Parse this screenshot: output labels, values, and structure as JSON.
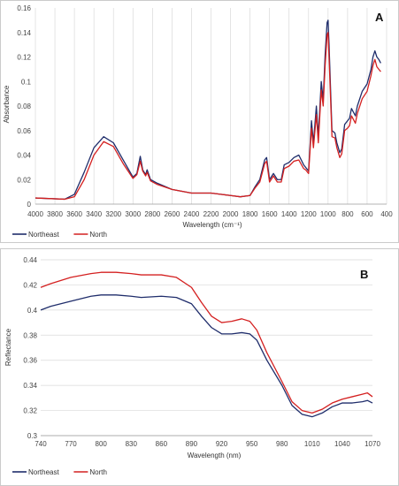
{
  "chart_data": [
    {
      "type": "line",
      "panel_label": "A",
      "title": "",
      "xlabel": "Wavelength (cm⁻¹)",
      "ylabel": "Absorbance",
      "x_reversed": true,
      "xlim": [
        4000,
        400
      ],
      "ylim": [
        0,
        0.16
      ],
      "xticks": [
        4000,
        3800,
        3600,
        3400,
        3200,
        3000,
        2800,
        2600,
        2400,
        2200,
        2000,
        1800,
        1600,
        1400,
        1200,
        1000,
        800,
        600,
        400
      ],
      "yticks": [
        0,
        0.02,
        0.04,
        0.06,
        0.08,
        0.1,
        0.12,
        0.14,
        0.16
      ],
      "grid": "vertical",
      "legend_position": "bottom-left",
      "series": [
        {
          "name": "Northeast",
          "color": "#1f2d6b",
          "points": [
            [
              4000,
              0.005
            ],
            [
              3700,
              0.004
            ],
            [
              3600,
              0.008
            ],
            [
              3500,
              0.026
            ],
            [
              3400,
              0.046
            ],
            [
              3300,
              0.055
            ],
            [
              3200,
              0.05
            ],
            [
              3100,
              0.036
            ],
            [
              3000,
              0.022
            ],
            [
              2960,
              0.025
            ],
            [
              2925,
              0.039
            ],
            [
              2900,
              0.028
            ],
            [
              2870,
              0.024
            ],
            [
              2855,
              0.028
            ],
            [
              2820,
              0.02
            ],
            [
              2750,
              0.017
            ],
            [
              2600,
              0.012
            ],
            [
              2400,
              0.009
            ],
            [
              2200,
              0.009
            ],
            [
              2100,
              0.008
            ],
            [
              2000,
              0.007
            ],
            [
              1900,
              0.006
            ],
            [
              1800,
              0.007
            ],
            [
              1750,
              0.014
            ],
            [
              1700,
              0.02
            ],
            [
              1650,
              0.036
            ],
            [
              1630,
              0.038
            ],
            [
              1600,
              0.02
            ],
            [
              1560,
              0.025
            ],
            [
              1520,
              0.02
            ],
            [
              1480,
              0.02
            ],
            [
              1450,
              0.032
            ],
            [
              1400,
              0.034
            ],
            [
              1350,
              0.038
            ],
            [
              1300,
              0.04
            ],
            [
              1250,
              0.032
            ],
            [
              1230,
              0.03
            ],
            [
              1200,
              0.027
            ],
            [
              1170,
              0.068
            ],
            [
              1150,
              0.05
            ],
            [
              1120,
              0.08
            ],
            [
              1100,
              0.055
            ],
            [
              1070,
              0.1
            ],
            [
              1050,
              0.085
            ],
            [
              1030,
              0.122
            ],
            [
              1010,
              0.148
            ],
            [
              1000,
              0.15
            ],
            [
              990,
              0.13
            ],
            [
              960,
              0.06
            ],
            [
              930,
              0.058
            ],
            [
              910,
              0.05
            ],
            [
              880,
              0.042
            ],
            [
              860,
              0.045
            ],
            [
              830,
              0.065
            ],
            [
              800,
              0.068
            ],
            [
              780,
              0.07
            ],
            [
              760,
              0.078
            ],
            [
              720,
              0.072
            ],
            [
              700,
              0.08
            ],
            [
              650,
              0.092
            ],
            [
              600,
              0.098
            ],
            [
              560,
              0.11
            ],
            [
              540,
              0.12
            ],
            [
              520,
              0.125
            ],
            [
              500,
              0.12
            ],
            [
              480,
              0.118
            ],
            [
              460,
              0.115
            ]
          ]
        },
        {
          "name": "North",
          "color": "#d42020",
          "points": [
            [
              4000,
              0.005
            ],
            [
              3700,
              0.004
            ],
            [
              3600,
              0.006
            ],
            [
              3500,
              0.02
            ],
            [
              3400,
              0.04
            ],
            [
              3300,
              0.051
            ],
            [
              3200,
              0.047
            ],
            [
              3100,
              0.033
            ],
            [
              3000,
              0.021
            ],
            [
              2960,
              0.024
            ],
            [
              2925,
              0.035
            ],
            [
              2900,
              0.027
            ],
            [
              2870,
              0.023
            ],
            [
              2855,
              0.026
            ],
            [
              2820,
              0.019
            ],
            [
              2750,
              0.016
            ],
            [
              2600,
              0.012
            ],
            [
              2400,
              0.009
            ],
            [
              2200,
              0.009
            ],
            [
              2100,
              0.008
            ],
            [
              2000,
              0.007
            ],
            [
              1900,
              0.006
            ],
            [
              1800,
              0.007
            ],
            [
              1750,
              0.013
            ],
            [
              1700,
              0.018
            ],
            [
              1650,
              0.033
            ],
            [
              1630,
              0.035
            ],
            [
              1600,
              0.018
            ],
            [
              1560,
              0.023
            ],
            [
              1520,
              0.018
            ],
            [
              1480,
              0.018
            ],
            [
              1450,
              0.029
            ],
            [
              1400,
              0.031
            ],
            [
              1350,
              0.035
            ],
            [
              1300,
              0.036
            ],
            [
              1250,
              0.029
            ],
            [
              1230,
              0.028
            ],
            [
              1200,
              0.025
            ],
            [
              1170,
              0.062
            ],
            [
              1150,
              0.046
            ],
            [
              1120,
              0.073
            ],
            [
              1100,
              0.05
            ],
            [
              1070,
              0.093
            ],
            [
              1050,
              0.08
            ],
            [
              1030,
              0.113
            ],
            [
              1010,
              0.138
            ],
            [
              1000,
              0.14
            ],
            [
              990,
              0.12
            ],
            [
              960,
              0.055
            ],
            [
              930,
              0.054
            ],
            [
              910,
              0.046
            ],
            [
              880,
              0.038
            ],
            [
              860,
              0.041
            ],
            [
              830,
              0.06
            ],
            [
              800,
              0.062
            ],
            [
              780,
              0.064
            ],
            [
              760,
              0.072
            ],
            [
              720,
              0.066
            ],
            [
              700,
              0.074
            ],
            [
              650,
              0.086
            ],
            [
              600,
              0.092
            ],
            [
              560,
              0.105
            ],
            [
              540,
              0.113
            ],
            [
              520,
              0.118
            ],
            [
              500,
              0.112
            ],
            [
              480,
              0.11
            ],
            [
              460,
              0.108
            ]
          ]
        }
      ]
    },
    {
      "type": "line",
      "panel_label": "B",
      "title": "",
      "xlabel": "Wavelength (nm)",
      "ylabel": "Reflectance",
      "x_reversed": false,
      "xlim": [
        740,
        1070
      ],
      "ylim": [
        0.3,
        0.44
      ],
      "xticks": [
        740,
        770,
        800,
        830,
        860,
        890,
        920,
        950,
        980,
        1010,
        1040,
        1070
      ],
      "yticks": [
        0.3,
        0.32,
        0.34,
        0.36,
        0.38,
        0.4,
        0.42,
        0.44
      ],
      "grid": "horizontal",
      "legend_position": "bottom-left",
      "series": [
        {
          "name": "Northeast",
          "color": "#1f2d6b",
          "points": [
            [
              740,
              0.4
            ],
            [
              750,
              0.403
            ],
            [
              770,
              0.407
            ],
            [
              790,
              0.411
            ],
            [
              800,
              0.412
            ],
            [
              815,
              0.412
            ],
            [
              830,
              0.411
            ],
            [
              840,
              0.41
            ],
            [
              860,
              0.411
            ],
            [
              875,
              0.41
            ],
            [
              890,
              0.405
            ],
            [
              900,
              0.395
            ],
            [
              910,
              0.386
            ],
            [
              920,
              0.381
            ],
            [
              930,
              0.381
            ],
            [
              940,
              0.382
            ],
            [
              948,
              0.381
            ],
            [
              955,
              0.376
            ],
            [
              965,
              0.36
            ],
            [
              980,
              0.34
            ],
            [
              990,
              0.324
            ],
            [
              1000,
              0.317
            ],
            [
              1010,
              0.315
            ],
            [
              1020,
              0.318
            ],
            [
              1030,
              0.323
            ],
            [
              1040,
              0.326
            ],
            [
              1050,
              0.326
            ],
            [
              1060,
              0.327
            ],
            [
              1065,
              0.328
            ],
            [
              1070,
              0.326
            ]
          ]
        },
        {
          "name": "North",
          "color": "#d42020",
          "points": [
            [
              740,
              0.418
            ],
            [
              750,
              0.421
            ],
            [
              770,
              0.426
            ],
            [
              790,
              0.429
            ],
            [
              800,
              0.43
            ],
            [
              815,
              0.43
            ],
            [
              830,
              0.429
            ],
            [
              840,
              0.428
            ],
            [
              860,
              0.428
            ],
            [
              875,
              0.426
            ],
            [
              890,
              0.418
            ],
            [
              900,
              0.406
            ],
            [
              910,
              0.395
            ],
            [
              920,
              0.39
            ],
            [
              930,
              0.391
            ],
            [
              940,
              0.393
            ],
            [
              948,
              0.391
            ],
            [
              955,
              0.384
            ],
            [
              965,
              0.366
            ],
            [
              980,
              0.343
            ],
            [
              990,
              0.327
            ],
            [
              1000,
              0.32
            ],
            [
              1010,
              0.318
            ],
            [
              1020,
              0.321
            ],
            [
              1030,
              0.326
            ],
            [
              1040,
              0.329
            ],
            [
              1050,
              0.331
            ],
            [
              1060,
              0.333
            ],
            [
              1065,
              0.334
            ],
            [
              1070,
              0.331
            ]
          ]
        }
      ]
    }
  ]
}
